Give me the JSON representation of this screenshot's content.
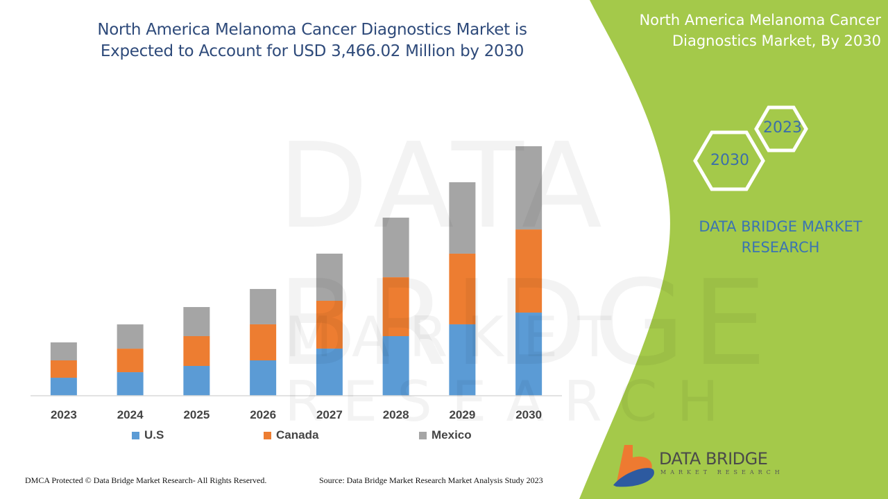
{
  "header": {
    "title": "North America Melanoma Cancer Diagnostics Market is Expected to Account for USD 3,466.02 Million by 2030",
    "side_title": "North America Melanoma Cancer Diagnostics Market, By 2030"
  },
  "side_panel": {
    "hex_years": [
      "2023",
      "2030"
    ],
    "brand": "DATA BRIDGE MARKET RESEARCH",
    "panel_color": "#a4c94a"
  },
  "logo": {
    "name": "DATA BRIDGE",
    "sub": "MARKET RESEARCH"
  },
  "watermark": {
    "line1": "DATA BRIDGE",
    "line2": "MARKET RESEARCH"
  },
  "footer": {
    "left": "DMCA Protected © Data Bridge Market Research- All Rights Reserved.",
    "right": "Source: Data Bridge Market Research Market Analysis Study 2023"
  },
  "chart_data": {
    "type": "bar",
    "stacked": true,
    "title": "North America Melanoma Cancer Diagnostics Market is Expected to Account for USD 3,466.02 Million by 2030",
    "xlabel": "",
    "ylabel": "",
    "unit": "USD Million",
    "categories": [
      "2023",
      "2024",
      "2025",
      "2026",
      "2027",
      "2028",
      "2029",
      "2030"
    ],
    "series": [
      {
        "name": "U.S",
        "color": "#5b9bd5",
        "values": [
          250,
          327,
          414,
          491,
          655,
          828,
          992,
          1155
        ]
      },
      {
        "name": "Canada",
        "color": "#ed7d31",
        "values": [
          241,
          327,
          414,
          501,
          664,
          818,
          982,
          1155
        ]
      },
      {
        "name": "Mexico",
        "color": "#a5a5a5",
        "values": [
          250,
          337,
          404,
          491,
          655,
          828,
          992,
          1156
        ]
      }
    ],
    "ylim": [
      0,
      3466.02
    ],
    "y_axis_shown": false,
    "grid": false,
    "legend_position": "bottom"
  }
}
